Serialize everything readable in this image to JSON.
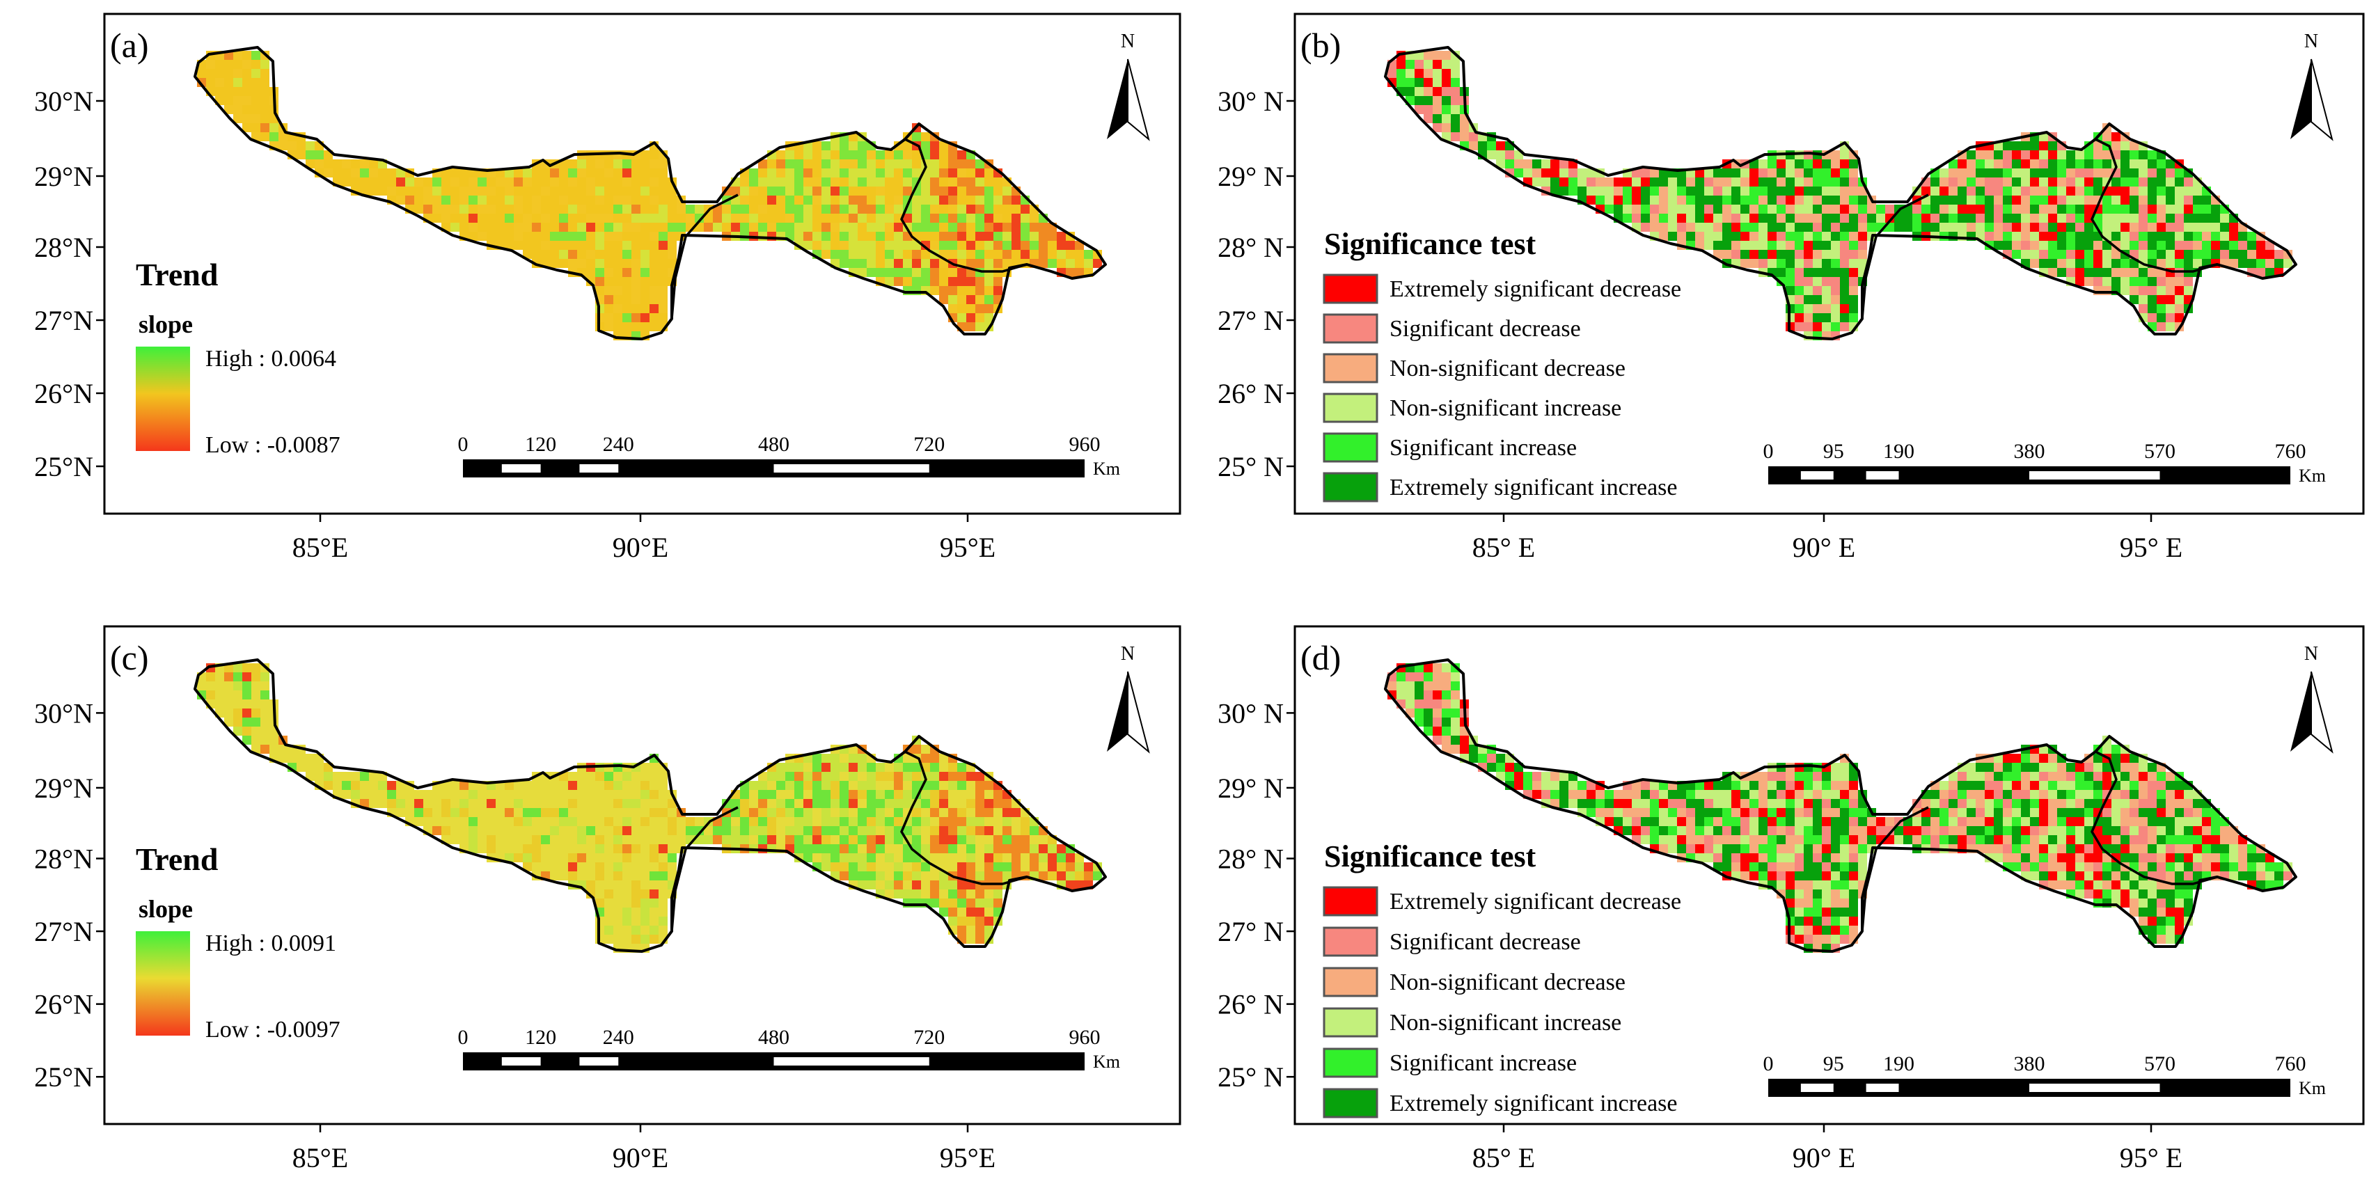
{
  "panels": [
    {
      "id": "a",
      "label": "(a)",
      "kind": "trend",
      "lat_labels": [
        "30°N",
        "29°N",
        "28°N",
        "27°N",
        "26°N",
        "25°N"
      ],
      "lon_labels": [
        "85°E",
        "90°E",
        "95°E"
      ],
      "north": "N",
      "legend": {
        "title": "Trend",
        "subtitle": "slope",
        "high": "High : 0.0064",
        "low": "Low : -0.0087"
      },
      "scale": {
        "ticks": [
          "0",
          "120",
          "240",
          "480",
          "720",
          "960"
        ],
        "unit": "Km"
      },
      "colors": {
        "low": "#f4371b",
        "mid": "#f2c61f",
        "high": "#3ef03a"
      },
      "class_mix": [
        0.05,
        0.1,
        0.15,
        0.35,
        0.2,
        0.15
      ]
    },
    {
      "id": "b",
      "label": "(b)",
      "kind": "significance",
      "lat_labels": [
        "30° N",
        "29° N",
        "28° N",
        "27° N",
        "26° N",
        "25° N"
      ],
      "lon_labels": [
        "85° E",
        "90° E",
        "95° E"
      ],
      "north": "N",
      "legend": {
        "title": "Significance test",
        "items": [
          {
            "label": "Extremely significant decrease",
            "color": "#fe0000"
          },
          {
            "label": "Significant decrease",
            "color": "#f7877f"
          },
          {
            "label": "Non-significant decrease",
            "color": "#f7ac7e"
          },
          {
            "label": "Non-significant increase",
            "color": "#c3f07c"
          },
          {
            "label": "Significant increase",
            "color": "#32f02b"
          },
          {
            "label": "Extremely significant increase",
            "color": "#07a10c"
          }
        ]
      },
      "scale": {
        "ticks": [
          "0",
          "95",
          "190",
          "380",
          "570",
          "760"
        ],
        "unit": "Km"
      },
      "class_mix": [
        0.12,
        0.12,
        0.18,
        0.2,
        0.13,
        0.25
      ]
    },
    {
      "id": "c",
      "label": "(c)",
      "kind": "trend",
      "lat_labels": [
        "30°N",
        "29°N",
        "28°N",
        "27°N",
        "26°N",
        "25°N"
      ],
      "lon_labels": [
        "85°E",
        "90°E",
        "95°E"
      ],
      "north": "N",
      "legend": {
        "title": "Trend",
        "subtitle": "slope",
        "high": "High : 0.0091",
        "low": "Low : -0.0097"
      },
      "scale": {
        "ticks": [
          "0",
          "120",
          "240",
          "480",
          "720",
          "960"
        ],
        "unit": "Km"
      },
      "colors": {
        "low": "#f4371b",
        "mid": "#eadb32",
        "high": "#3ef03a"
      },
      "class_mix": [
        0.05,
        0.08,
        0.12,
        0.4,
        0.2,
        0.15
      ]
    },
    {
      "id": "d",
      "label": "(d)",
      "kind": "significance",
      "lat_labels": [
        "30° N",
        "29° N",
        "28° N",
        "27° N",
        "26° N",
        "25° N"
      ],
      "lon_labels": [
        "85° E",
        "90° E",
        "95° E"
      ],
      "north": "N",
      "legend": {
        "title": "Significance test",
        "items": [
          {
            "label": "Extremely significant decrease",
            "color": "#fe0000"
          },
          {
            "label": "Significant decrease",
            "color": "#f7877f"
          },
          {
            "label": "Non-significant decrease",
            "color": "#f7ac7e"
          },
          {
            "label": "Non-significant increase",
            "color": "#c3f07c"
          },
          {
            "label": "Significant increase",
            "color": "#32f02b"
          },
          {
            "label": "Extremely significant increase",
            "color": "#07a10c"
          }
        ]
      },
      "scale": {
        "ticks": [
          "0",
          "95",
          "190",
          "380",
          "570",
          "760"
        ],
        "unit": "Km"
      },
      "class_mix": [
        0.12,
        0.12,
        0.2,
        0.22,
        0.12,
        0.22
      ]
    }
  ]
}
